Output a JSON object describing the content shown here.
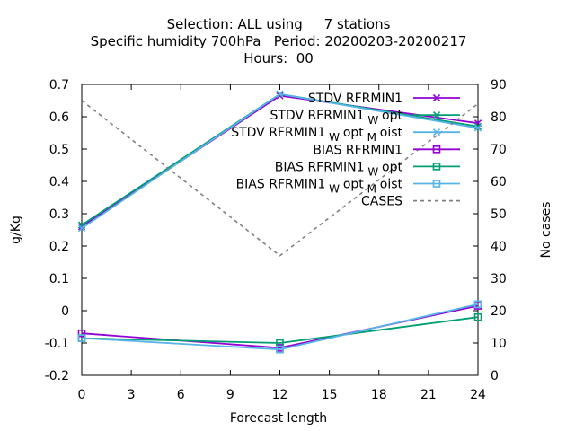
{
  "chart_data": {
    "type": "line",
    "title_lines": [
      "Selection: ALL using     7 stations",
      "Specific humidity 700hPa   Period: 20200203-20200217",
      "Hours:  00"
    ],
    "xlabel": "Forecast length",
    "ylabel": "g/Kg",
    "y2label": "No cases",
    "xlim": [
      0,
      24
    ],
    "ylim": [
      -0.2,
      0.7
    ],
    "y2lim": [
      0,
      90
    ],
    "xticks": [
      "0",
      "3",
      "6",
      "9",
      "12",
      "15",
      "18",
      "21",
      "24"
    ],
    "yticks": [
      "-0.2",
      "-0.1",
      "0",
      "0.1",
      "0.2",
      "0.3",
      "0.4",
      "0.5",
      "0.6",
      "0.7"
    ],
    "y2ticks": [
      "0",
      "10",
      "20",
      "30",
      "40",
      "50",
      "60",
      "70",
      "80",
      "90"
    ],
    "grid": false,
    "legend_position": "top-right",
    "x": [
      0,
      12,
      24
    ],
    "series": [
      {
        "name": "STDV RFRMIN1",
        "parts": [
          "STDV RFRMIN1"
        ],
        "color": "#9400d3",
        "marker": "x",
        "axis": "y",
        "values": [
          0.26,
          0.665,
          0.58
        ]
      },
      {
        "name": "STDV RFRMIN1_W opt",
        "parts": [
          "STDV RFRMIN1",
          "W",
          "opt"
        ],
        "color": "#009e73",
        "marker": "x",
        "axis": "y",
        "values": [
          0.265,
          0.67,
          0.57
        ]
      },
      {
        "name": "STDV RFRMIN1_W opt_M oist",
        "parts": [
          "STDV RFRMIN1",
          "W",
          "opt",
          "M",
          "oist"
        ],
        "color": "#56b4e9",
        "marker": "x",
        "axis": "y",
        "values": [
          0.255,
          0.67,
          0.565
        ]
      },
      {
        "name": "BIAS RFRMIN1",
        "parts": [
          "BIAS RFRMIN1"
        ],
        "color": "#9400d3",
        "marker": "square",
        "axis": "y",
        "values": [
          -0.07,
          -0.115,
          0.015
        ]
      },
      {
        "name": "BIAS RFRMIN1_W opt",
        "parts": [
          "BIAS RFRMIN1",
          "W",
          "opt"
        ],
        "color": "#009e73",
        "marker": "square",
        "axis": "y",
        "values": [
          -0.085,
          -0.1,
          -0.02
        ]
      },
      {
        "name": "BIAS RFRMIN1_W opt_M oist",
        "parts": [
          "BIAS RFRMIN1",
          "W",
          "opt",
          "M",
          "oist"
        ],
        "color": "#56b4e9",
        "marker": "square",
        "axis": "y",
        "values": [
          -0.085,
          -0.12,
          0.02
        ]
      },
      {
        "name": "CASES",
        "parts": [
          "CASES"
        ],
        "color": "#808080",
        "marker": "none",
        "dashed": true,
        "axis": "y2",
        "values": [
          85,
          37,
          84
        ]
      }
    ]
  }
}
